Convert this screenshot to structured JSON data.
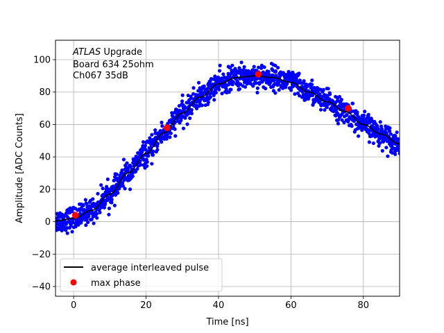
{
  "chart_data": {
    "type": "scatter",
    "title": "",
    "xlabel": "Time [ns]",
    "ylabel": "Amplitude [ADC Counts]",
    "xlim": [
      -5,
      90
    ],
    "ylim": [
      -46,
      112
    ],
    "xticks": [
      0,
      20,
      40,
      60,
      80
    ],
    "yticks": [
      -40,
      -20,
      0,
      20,
      40,
      60,
      80,
      100
    ],
    "xtick_labels": [
      "0",
      "20",
      "40",
      "60",
      "80"
    ],
    "ytick_labels": [
      "−40",
      "−20",
      "0",
      "20",
      "40",
      "60",
      "80",
      "100"
    ],
    "grid": true,
    "legend_position": "lower-left",
    "annotation": {
      "line1_italic": "ATLAS",
      "line1_rest": " Upgrade",
      "line2": " Board 634 25ohm",
      "line3": " Ch067 35dB"
    },
    "series": [
      {
        "name": "",
        "kind": "scatter-samples",
        "color": "#0000ff",
        "description_note": "dense blue sample points scattered around the average pulse",
        "x": [
          -5,
          0,
          5,
          10,
          15,
          20,
          25,
          30,
          35,
          40,
          45,
          50,
          55,
          60,
          65,
          70,
          75,
          80,
          85,
          90
        ],
        "y": [
          0,
          2,
          7,
          17,
          30,
          42,
          55,
          68,
          78,
          85,
          89,
          90,
          89,
          86,
          80,
          73,
          68,
          60,
          54,
          48
        ]
      },
      {
        "name": "average interleaved pulse",
        "kind": "line",
        "color": "#000000",
        "x": [
          -5,
          0,
          5,
          10,
          15,
          20,
          25,
          30,
          35,
          40,
          45,
          50,
          55,
          60,
          65,
          70,
          75,
          80,
          85,
          90
        ],
        "y": [
          0.5,
          2,
          7,
          17,
          30,
          42,
          55,
          67,
          77,
          85,
          89,
          90,
          89,
          86,
          80,
          74,
          68,
          60,
          54,
          48
        ]
      },
      {
        "name": "max phase",
        "kind": "scatter",
        "color": "#ff0000",
        "x": [
          0.5,
          25.8,
          51,
          75.8
        ],
        "y": [
          4,
          58,
          91,
          70
        ]
      }
    ]
  }
}
